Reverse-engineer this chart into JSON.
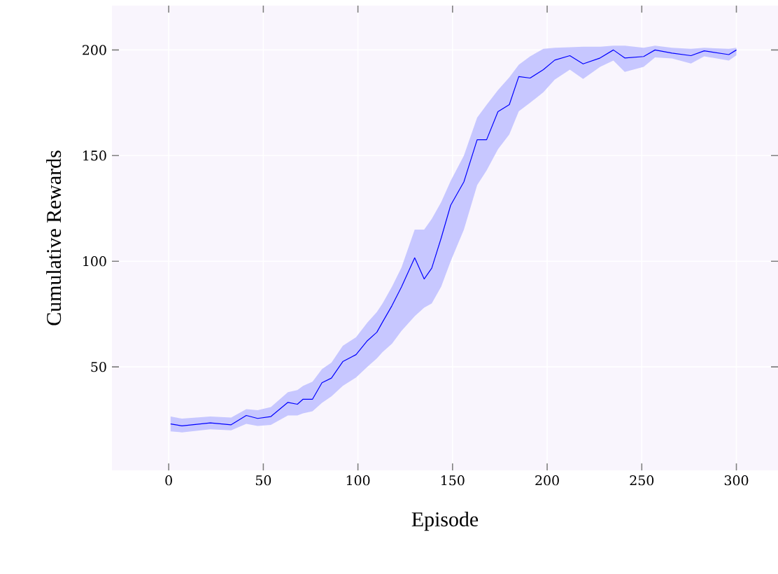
{
  "chart_data": {
    "type": "line",
    "xlabel": "Episode",
    "ylabel": "Cumulative Rewards",
    "x": [
      1,
      7,
      22,
      33,
      41,
      47,
      54,
      63,
      68,
      71,
      76,
      81,
      86,
      92,
      99,
      105,
      110,
      113,
      118,
      123,
      130,
      135,
      139,
      144,
      149,
      156,
      163,
      168,
      174,
      180,
      185,
      191,
      198,
      204,
      212,
      219,
      228,
      235,
      241,
      251,
      257,
      266,
      276,
      283,
      296,
      300
    ],
    "series": [
      {
        "color": "#0000ff",
        "values": [
          23.0,
          22.1,
          23.5,
          22.6,
          27,
          25.6,
          26.5,
          33.2,
          32.3,
          34.7,
          34.7,
          42.5,
          44.7,
          52.5,
          55.8,
          62.4,
          66.4,
          71.2,
          79,
          87.8,
          101.6,
          91.6,
          96.7,
          111,
          126.5,
          137.6,
          157.5,
          157.5,
          170.8,
          174.1,
          187.4,
          186.7,
          190.7,
          195.2,
          197.3,
          193.4,
          196.2,
          200,
          196.2,
          196.9,
          200,
          198.5,
          197.3,
          199.6,
          197.8,
          200
        ],
        "lower": [
          19.5,
          19,
          20.5,
          20,
          23,
          22,
          22.5,
          27,
          27,
          28,
          29,
          33,
          36,
          41,
          45,
          50,
          54,
          57,
          61,
          67,
          74,
          78,
          80,
          88,
          100,
          115,
          136,
          143,
          153,
          160,
          171,
          175,
          180,
          186,
          190.7,
          186.3,
          192,
          195,
          189.6,
          192,
          196.5,
          196,
          193.6,
          197,
          195,
          197.5
        ],
        "upper": [
          26.5,
          25.5,
          26.5,
          26,
          30,
          29.5,
          31,
          38,
          39,
          41,
          43,
          49,
          52,
          60,
          64,
          71,
          76,
          80,
          88,
          97,
          115,
          115,
          120,
          128,
          138,
          150,
          168,
          174,
          181,
          187,
          193,
          197,
          200.5,
          201,
          201.3,
          201.5,
          201.5,
          202,
          202,
          201,
          202,
          201,
          200.5,
          201,
          200.5,
          201
        ]
      }
    ],
    "xlim": [
      -30,
      322
    ],
    "ylim": [
      1,
      221
    ],
    "xticks": [
      0,
      50,
      100,
      150,
      200,
      250,
      300
    ],
    "yticks": [
      50,
      100,
      150,
      200
    ],
    "grid": true,
    "marker": "none",
    "line_style": "solid"
  }
}
